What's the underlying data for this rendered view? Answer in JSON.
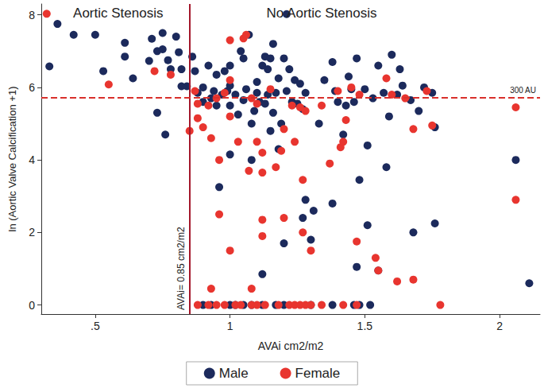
{
  "chart_data": {
    "type": "scatter",
    "x_label": "AVAi cm2/m2",
    "y_label": "ln (Aortic Valve Calcification +1)",
    "xlim": [
      0.3,
      2.15
    ],
    "ylim": [
      -0.25,
      8.3
    ],
    "xticks": [
      {
        "value": 0.5,
        "label": ".5"
      },
      1,
      1.5,
      2
    ],
    "yticks": [
      0,
      2,
      4,
      6,
      8
    ],
    "grid": false,
    "legend": "bottom",
    "marker": "circle",
    "series": [
      {
        "name": "Male",
        "color": "#1c2a5c",
        "x": [
          0.36,
          0.33,
          0.42,
          0.5,
          0.53,
          0.61,
          0.61,
          0.64,
          0.7,
          0.71,
          0.73,
          0.75,
          0.75,
          0.77,
          0.78,
          0.73,
          0.76,
          0.8,
          0.81,
          0.82,
          0.82,
          0.84,
          0.86,
          0.87,
          0.88,
          0.9,
          0.9,
          0.92,
          0.93,
          0.94,
          0.95,
          0.95,
          0.96,
          0.97,
          0.98,
          0.99,
          1.0,
          1.0,
          1.0,
          1.0,
          1.02,
          1.03,
          1.04,
          1.05,
          1.05,
          1.06,
          1.07,
          1.08,
          1.08,
          1.09,
          1.1,
          1.1,
          1.11,
          1.12,
          1.12,
          1.13,
          1.13,
          1.14,
          1.14,
          1.15,
          1.15,
          1.16,
          1.16,
          1.17,
          1.18,
          1.18,
          1.19,
          1.2,
          1.2,
          1.21,
          1.21,
          1.22,
          1.23,
          1.24,
          1.25,
          1.26,
          1.27,
          1.27,
          1.28,
          1.28,
          1.3,
          1.31,
          1.33,
          1.35,
          1.38,
          1.38,
          1.39,
          1.4,
          1.42,
          1.43,
          1.44,
          1.45,
          1.46,
          1.47,
          1.47,
          1.48,
          1.5,
          1.51,
          1.51,
          1.53,
          1.55,
          1.55,
          1.57,
          1.58,
          1.59,
          1.6,
          1.62,
          1.63,
          1.64,
          1.67,
          1.68,
          1.7,
          1.72,
          1.75,
          1.76,
          1.76,
          2.06,
          2.11,
          0.9,
          0.93,
          1.0,
          1.02,
          1.05,
          1.08,
          1.12,
          1.17,
          1.2,
          1.3,
          1.38,
          1.46,
          1.48,
          1.52
        ],
        "values": [
          7.75,
          6.58,
          7.45,
          7.45,
          6.45,
          7.23,
          6.85,
          6.25,
          6.73,
          7.34,
          7.0,
          7.5,
          7.05,
          6.75,
          6.5,
          5.3,
          4.7,
          7.4,
          6.97,
          6.5,
          6.03,
          6.03,
          6.85,
          6.45,
          5.85,
          5.6,
          6.0,
          6.6,
          5.7,
          5.9,
          6.35,
          5.5,
          3.25,
          5.8,
          6.45,
          5.9,
          6.05,
          5.5,
          4.15,
          6.6,
          5.8,
          5.25,
          7.0,
          5.65,
          6.8,
          5.95,
          7.45,
          5.0,
          4.0,
          5.35,
          6.15,
          5.85,
          5.6,
          6.6,
          0.85,
          6.85,
          5.55,
          6.5,
          5.8,
          4.8,
          6.8,
          5.3,
          7.2,
          5.85,
          4.3,
          6.25,
          5.0,
          6.8,
          1.7,
          5.9,
          8.02,
          6.5,
          5.6,
          6.2,
          5.55,
          6.1,
          5.4,
          2.4,
          5.85,
          2.9,
          1.8,
          2.6,
          5.0,
          6.2,
          6.7,
          2.8,
          5.9,
          5.6,
          4.7,
          5.5,
          6.3,
          5.95,
          5.6,
          6.8,
          1.05,
          3.45,
          5.95,
          4.4,
          2.2,
          5.7,
          6.6,
          0.95,
          5.85,
          3.8,
          5.2,
          6.9,
          5.8,
          6.5,
          6.05,
          5.65,
          2.0,
          5.35,
          6.0,
          5.85,
          4.9,
          2.25,
          4.0,
          0.6,
          0,
          0,
          0,
          0,
          0,
          0,
          0,
          0,
          0,
          0,
          0,
          0,
          0,
          0
        ]
      },
      {
        "name": "Female",
        "color": "#e8352f",
        "x": [
          0.32,
          0.55,
          0.72,
          0.78,
          0.85,
          0.87,
          0.88,
          0.88,
          0.9,
          0.92,
          0.93,
          0.93,
          0.95,
          0.96,
          0.96,
          0.98,
          1.0,
          1.0,
          1.0,
          1.0,
          1.03,
          1.05,
          1.06,
          1.07,
          1.08,
          1.08,
          1.1,
          1.1,
          1.12,
          1.12,
          1.12,
          1.12,
          1.15,
          1.17,
          1.19,
          1.2,
          1.2,
          1.23,
          1.24,
          1.26,
          1.27,
          1.27,
          1.28,
          1.3,
          1.34,
          1.37,
          1.4,
          1.41,
          1.42,
          1.43,
          1.45,
          1.47,
          1.48,
          1.54,
          1.55,
          1.58,
          1.6,
          1.62,
          1.65,
          1.68,
          1.68,
          1.73,
          1.75,
          2.06,
          2.06,
          0.88,
          0.92,
          0.95,
          0.98,
          1.02,
          1.04,
          1.08,
          1.1,
          1.13,
          1.18,
          1.22,
          1.24,
          1.26,
          1.28,
          1.3,
          1.34,
          1.42,
          1.47,
          1.78
        ],
        "values": [
          8.03,
          6.08,
          6.45,
          6.35,
          4.8,
          5.9,
          5.55,
          5.15,
          4.9,
          5.5,
          4.6,
          0.45,
          5.7,
          4.0,
          2.5,
          5.85,
          7.3,
          6.2,
          5.2,
          1.5,
          4.5,
          7.35,
          7.45,
          3.7,
          5.7,
          0.45,
          5.55,
          4.5,
          4.2,
          3.65,
          2.35,
          1.9,
          5.95,
          3.8,
          4.25,
          4.85,
          2.4,
          5.5,
          4.5,
          5.45,
          3.45,
          2.0,
          5.35,
          1.5,
          5.5,
          3.9,
          5.9,
          4.35,
          4.5,
          5.1,
          6.0,
          1.75,
          5.8,
          1.3,
          0.95,
          6.25,
          5.8,
          0.65,
          5.7,
          4.85,
          0.7,
          5.9,
          4.95,
          5.45,
          2.9,
          0,
          0,
          0,
          0,
          0,
          0,
          0,
          0,
          0,
          0,
          0,
          0,
          0,
          0,
          0,
          0,
          0,
          0,
          0
        ]
      }
    ],
    "reference_lines": [
      {
        "axis": "x",
        "value": 0.85,
        "label": "AVAi= 0.85 cm2/m2",
        "color": "#a3172b",
        "line_style": "solid"
      },
      {
        "axis": "y",
        "value": 5.71,
        "label": "300 AU",
        "color": "#d9302b",
        "line_style": "dashed"
      }
    ],
    "annotations": [
      {
        "text": "Aortic Stenosis",
        "x": 0.585,
        "y": 8.04
      },
      {
        "text": "No Aortic Stenosis",
        "x": 1.34,
        "y": 8.04
      }
    ]
  }
}
